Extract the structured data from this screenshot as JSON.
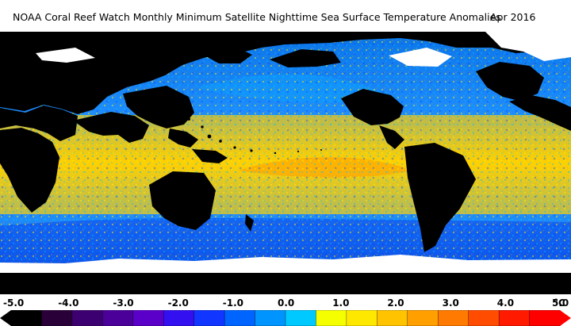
{
  "header": {
    "title": "NOAA Coral Reef Watch Monthly Minimum Satellite Nighttime Sea Surface Temperature Anomalies",
    "date": "Apr 2016"
  },
  "map": {
    "background_sea_color": "#0a74ef",
    "land_color": "#000000",
    "ice_color": "#ffffff"
  },
  "legend": {
    "ticks": [
      "-5.0",
      "-4.0",
      "-3.0",
      "-2.0",
      "-1.0",
      "0.0",
      "1.0",
      "2.0",
      "3.0",
      "4.0",
      "5.0"
    ],
    "unit": "°C",
    "colors": [
      "#000000",
      "#2a0038",
      "#3d0070",
      "#4a0099",
      "#5a00c8",
      "#3310ef",
      "#1036ff",
      "#0064ff",
      "#0094ff",
      "#00c9ff",
      "#f5ff00",
      "#ffe800",
      "#ffc300",
      "#ff9f00",
      "#ff7a00",
      "#ff4c00",
      "#ff1a00",
      "#ff0000"
    ],
    "min": -5.0,
    "max": 5.0
  }
}
